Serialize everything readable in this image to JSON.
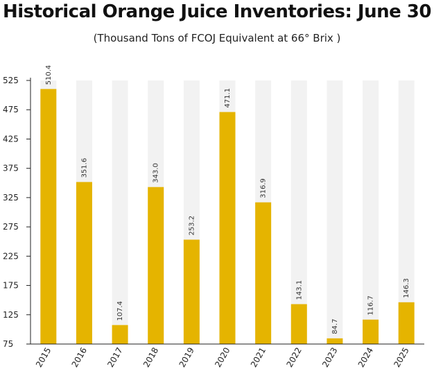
{
  "chart_data": {
    "type": "bar",
    "title": "Historical Orange Juice Inventories: June 30",
    "subtitle": "(Thousand Tons of FCOJ Equivalent at 66° Brix )",
    "categories": [
      "2015",
      "2016",
      "2017",
      "2018",
      "2019",
      "2020",
      "2021",
      "2022",
      "2023",
      "2024",
      "2025"
    ],
    "values": [
      510.4,
      351.6,
      107.4,
      343.0,
      253.2,
      471.1,
      316.9,
      143.1,
      84.7,
      116.7,
      146.3
    ],
    "value_labels": [
      "510.4",
      "351.6",
      "107.4",
      "343.0",
      "253.2",
      "471.1",
      "316.9",
      "143.1",
      "84.7",
      "116.7",
      "146.3"
    ],
    "ylim": [
      75,
      525
    ],
    "yticks": [
      "75",
      "125",
      "175",
      "225",
      "275",
      "325",
      "375",
      "425",
      "475",
      "525"
    ],
    "xlabel": "",
    "ylabel": "",
    "grid": false,
    "colors": {
      "bar": "#e5b400",
      "background_column": "#f2f2f2",
      "axis": "#222222"
    }
  }
}
